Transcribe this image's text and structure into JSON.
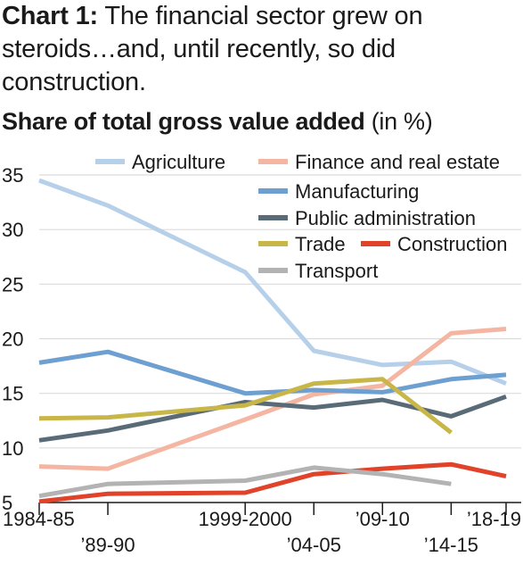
{
  "heading": {
    "number": "Chart 1:",
    "text": "The financial sector grew on steroids…and, until recently, so did construction."
  },
  "subtitle": {
    "bold": "Share of total gross value added",
    "unit": "(in %)"
  },
  "chart_data": {
    "type": "line",
    "title": "Share of total gross value added",
    "ylabel": "(in %)",
    "ylim": [
      5,
      35
    ],
    "yticks": [
      5,
      10,
      15,
      20,
      25,
      30,
      35
    ],
    "x": [
      1984,
      1989,
      1999,
      2004,
      2009,
      2014,
      2018
    ],
    "xtick_labels": [
      "1984-85",
      "’89-90",
      "1999-2000",
      "’04-05",
      "’09-10",
      "’14-15",
      "’18-19"
    ],
    "grid": true,
    "legend_position": "top-right",
    "series": [
      {
        "name": "Agriculture",
        "color": "#b7d0ea",
        "values": [
          34.5,
          32.2,
          26.1,
          18.9,
          17.6,
          17.9,
          15.9
        ]
      },
      {
        "name": "Finance and real estate",
        "color": "#f4b6a3",
        "values": [
          8.3,
          8.1,
          12.6,
          14.9,
          15.7,
          20.5,
          20.9
        ]
      },
      {
        "name": "Manufacturing",
        "color": "#6e9fd1",
        "values": [
          17.8,
          18.8,
          15.0,
          15.3,
          15.1,
          16.3,
          16.7
        ]
      },
      {
        "name": "Public administration",
        "color": "#5a6b78",
        "values": [
          10.7,
          11.6,
          14.2,
          13.7,
          14.4,
          12.9,
          14.7
        ]
      },
      {
        "name": "Trade",
        "color": "#c8b649",
        "values": [
          12.7,
          12.8,
          13.9,
          15.9,
          16.3,
          11.4,
          null
        ]
      },
      {
        "name": "Construction",
        "color": "#e0432a",
        "values": [
          5.1,
          5.8,
          5.9,
          7.6,
          8.1,
          8.5,
          7.4
        ]
      },
      {
        "name": "Transport",
        "color": "#b3b3b3",
        "values": [
          5.6,
          6.7,
          7.0,
          8.2,
          7.6,
          6.7,
          null
        ]
      }
    ]
  }
}
